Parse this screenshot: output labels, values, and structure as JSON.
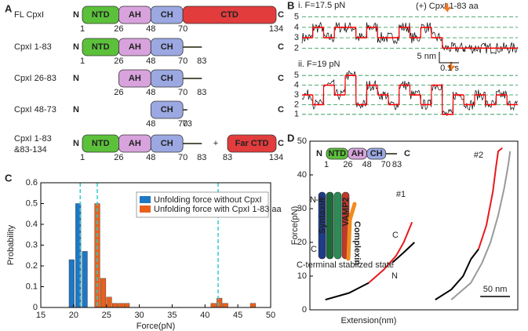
{
  "panel_labels": [
    "A",
    "B",
    "C",
    "D"
  ],
  "constructs": [
    {
      "label": "FL CpxI",
      "termini": [
        "N",
        "C"
      ],
      "domains": [
        {
          "name": "NTD",
          "start": 1,
          "end": 26,
          "color": "#5cc13a"
        },
        {
          "name": "AH",
          "start": 26,
          "end": 48,
          "color": "#d8a3dc"
        },
        {
          "name": "CH",
          "start": 48,
          "end": 70,
          "color": "#9ba8e2"
        },
        {
          "name": "CTD",
          "start": 70,
          "end": 134,
          "color": "#e23c3c"
        }
      ],
      "residues": [
        1,
        26,
        48,
        70,
        134
      ]
    },
    {
      "label": "CpxI 1-83",
      "termini": [
        "N",
        "C"
      ],
      "domains": [
        {
          "name": "NTD",
          "start": 1,
          "end": 26,
          "color": "#5cc13a"
        },
        {
          "name": "AH",
          "start": 26,
          "end": 48,
          "color": "#d8a3dc"
        },
        {
          "name": "CH",
          "start": 48,
          "end": 70,
          "color": "#9ba8e2"
        }
      ],
      "residues": [
        1,
        26,
        48,
        70,
        83
      ]
    },
    {
      "label": "CpxI 26-83",
      "termini": [
        "N",
        "C"
      ],
      "domains": [
        {
          "name": "AH",
          "start": 26,
          "end": 48,
          "color": "#d8a3dc"
        },
        {
          "name": "CH",
          "start": 48,
          "end": 70,
          "color": "#9ba8e2"
        }
      ],
      "residues": [
        26,
        48,
        70,
        83
      ]
    },
    {
      "label": "CpxI 48-73",
      "termini": [
        "N",
        "C"
      ],
      "domains": [
        {
          "name": "CH",
          "start": 48,
          "end": 70,
          "color": "#9ba8e2"
        }
      ],
      "residues": [
        48,
        70,
        73
      ]
    },
    {
      "label": [
        "CpxI 1-83",
        "&83-134"
      ],
      "termini": [
        "N",
        "C"
      ],
      "domains": [
        {
          "name": "NTD",
          "start": 1,
          "end": 26,
          "color": "#5cc13a"
        },
        {
          "name": "AH",
          "start": 26,
          "end": 48,
          "color": "#d8a3dc"
        },
        {
          "name": "CH",
          "start": 48,
          "end": 70,
          "color": "#9ba8e2"
        }
      ],
      "residues": [
        1,
        26,
        48,
        70,
        83
      ],
      "joiner": "+",
      "far": {
        "domains": [
          {
            "name": "Far CTD",
            "start": 83,
            "end": 134,
            "color": "#e23c3c"
          }
        ],
        "residues": [
          83,
          134
        ]
      }
    }
  ],
  "chart_data": [
    {
      "type": "step",
      "annotation": "(+) CpxI 1-83 aa",
      "annotation_color": "#ff0000",
      "arrow_color": "#f07820",
      "line_color": "#ff0000",
      "raw_color": "#000000",
      "level_color": "#1a8f4a",
      "scale_labels": [
        "5 nm",
        "0.1 s"
      ],
      "traces": [
        {
          "title": "i. F=17.5 pN",
          "ylim": [
            1.5,
            5.5
          ],
          "yticks": [
            2,
            3,
            4,
            5
          ],
          "values": [
            3,
            4,
            3,
            4,
            4,
            3,
            4,
            3,
            3,
            4,
            3,
            4,
            3,
            2,
            2,
            2,
            2,
            2,
            2,
            2
          ]
        },
        {
          "title": "ii. F=19 pN",
          "ylim": [
            0.5,
            5.5
          ],
          "yticks": [
            1,
            2,
            3,
            4,
            5
          ],
          "values": [
            3,
            2,
            4,
            3,
            5,
            2,
            4,
            3,
            2,
            4,
            3,
            2,
            4,
            1,
            3,
            2,
            3,
            2,
            3,
            2
          ]
        }
      ]
    },
    {
      "type": "bar",
      "xlabel": "Force(pN)",
      "ylabel": "Probability",
      "xlim": [
        15,
        50
      ],
      "ylim": [
        0,
        0.6
      ],
      "xticks": [
        15,
        20,
        25,
        30,
        35,
        40,
        45,
        50
      ],
      "yticks": [
        0,
        0.1,
        0.2,
        0.3,
        0.4,
        0.5,
        0.6
      ],
      "legend": "upper right",
      "series": [
        {
          "name": "Unfolding force without CpxI",
          "color": "#1f77c4",
          "x": [
            19.7,
            20.7,
            21.7
          ],
          "values": [
            0.23,
            0.5,
            0.27
          ]
        },
        {
          "name": "Unfolding force with CpxI 1-83 aa",
          "color": "#e8601c",
          "x": [
            23.6,
            24.5,
            25.4,
            26.3,
            27.2,
            28.1,
            41.3,
            42.2,
            43.1,
            47.3
          ],
          "values": [
            0.5,
            0.14,
            0.05,
            0.02,
            0.02,
            0.02,
            0.02,
            0.045,
            0.02,
            0.02
          ]
        }
      ],
      "reference_lines": [
        21,
        23.6,
        42
      ],
      "reference_color": "#33cccc"
    },
    {
      "type": "line",
      "xlabel": "Extension(nm)",
      "ylabel": "Force(pN)",
      "xlim": [
        0,
        350
      ],
      "ylim": [
        0,
        50
      ],
      "yticks": [
        0,
        10,
        20,
        30,
        40,
        50
      ],
      "series": [
        {
          "color": "#000000",
          "x": [
            26,
            66,
            99
          ],
          "values": [
            3,
            5,
            8
          ]
        },
        {
          "color": "#e8191c",
          "x": [
            99,
            125,
            145,
            158,
            172
          ],
          "values": [
            8,
            12,
            16,
            20,
            26
          ]
        },
        {
          "color": "#000000",
          "x": [
            176,
            158,
            139
          ],
          "values": [
            20,
            17,
            14
          ]
        },
        {
          "color": "#999999",
          "x": [
            238,
            271,
            290,
            304,
            317,
            327,
            334,
            337
          ],
          "values": [
            3,
            8,
            14,
            20,
            28,
            36,
            43,
            47
          ]
        },
        {
          "color": "#000000",
          "x": [
            211,
            238,
            258,
            271,
            284
          ],
          "values": [
            3,
            6,
            10,
            15,
            18
          ]
        },
        {
          "color": "#e8191c",
          "x": [
            284,
            297,
            308,
            313,
            317,
            324
          ],
          "values": [
            18,
            25,
            35,
            42,
            47,
            48
          ]
        }
      ],
      "annotations": [
        "#1",
        "#2",
        "C",
        "N"
      ],
      "scale_bar": {
        "value": 50,
        "label": "50 nm"
      },
      "inset_construct": {
        "termini": [
          "N",
          "C"
        ],
        "domains": [
          {
            "name": "NTD",
            "start": 1,
            "end": 26,
            "color": "#5cc13a"
          },
          {
            "name": "AH",
            "start": 26,
            "end": 48,
            "color": "#d8a3dc"
          },
          {
            "name": "CH",
            "start": 48,
            "end": 70,
            "color": "#9ba8e2"
          }
        ],
        "residues": [
          1,
          26,
          48,
          70,
          83
        ]
      },
      "inset_labels": [
        "Syntaxin",
        "VAMP2",
        "Complexin",
        "N",
        "-6",
        "C",
        "C-terminal stablized state"
      ]
    }
  ]
}
